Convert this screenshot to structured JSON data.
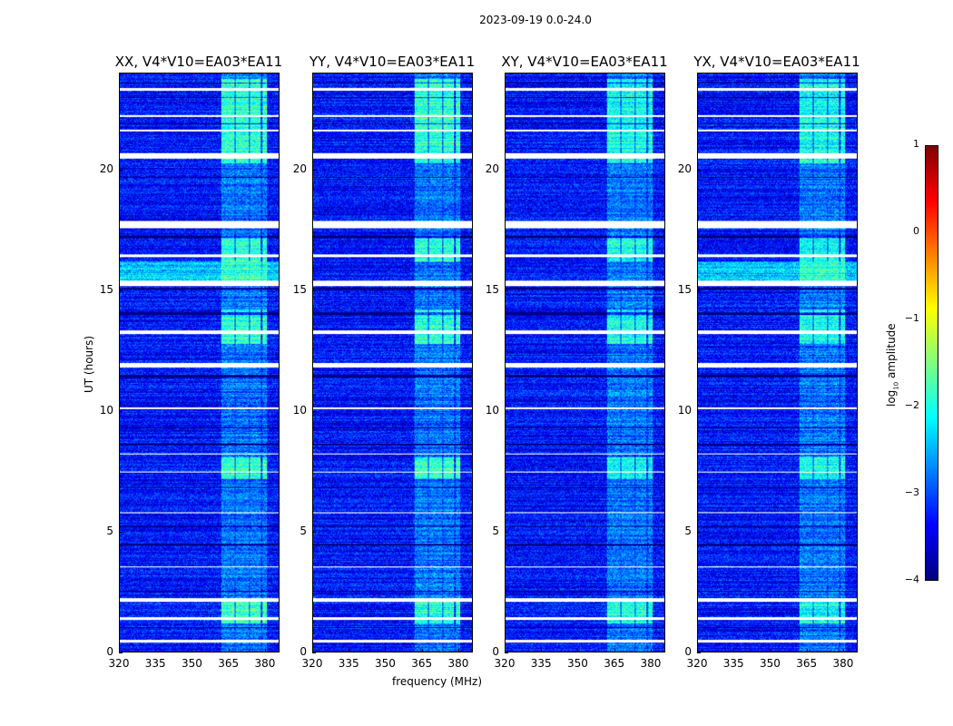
{
  "chart_data": {
    "type": "heatmap",
    "title": "2023-09-19 0.0-24.0",
    "xlabel": "frequency (MHz)",
    "ylabel": "UT (hours)",
    "xlim": [
      320,
      386
    ],
    "ylim": [
      0,
      24
    ],
    "xticks": [
      "320",
      "335",
      "350",
      "365",
      "380"
    ],
    "xtick_values": [
      320,
      335,
      350,
      365,
      380
    ],
    "yticks": [
      "0",
      "5",
      "10",
      "15",
      "20"
    ],
    "ytick_values": [
      0,
      5,
      10,
      15,
      20
    ],
    "panels": [
      {
        "title": "XX, V4*V10=EA03*EA11",
        "rfi_strength": 1.0,
        "broadband_15_16h": true
      },
      {
        "title": "YY, V4*V10=EA03*EA11",
        "rfi_strength": 1.0,
        "broadband_15_16h": false
      },
      {
        "title": "XY, V4*V10=EA03*EA11",
        "rfi_strength": 0.9,
        "broadband_15_16h": false
      },
      {
        "title": "YX, V4*V10=EA03*EA11",
        "rfi_strength": 0.9,
        "broadband_15_16h": true
      }
    ],
    "colorbar": {
      "label": "log10 amplitude",
      "label_base": "log",
      "label_sub": "10",
      "label_rest": " amplitude",
      "range": [
        -4,
        1
      ],
      "ticks": [
        "1",
        "0",
        "−1",
        "−2",
        "−3",
        "−4"
      ],
      "tick_values": [
        1,
        0,
        -1,
        -2,
        -3,
        -4
      ],
      "colormap": "jet"
    },
    "background_log_amplitude": -3.3,
    "rfi_band_mhz": [
      362,
      381
    ],
    "rfi_subbands_mhz": [
      [
        362,
        367.5
      ],
      [
        368,
        373.5
      ],
      [
        374,
        378.5
      ],
      [
        379,
        381
      ]
    ],
    "rfi_strong_hours": [
      [
        1.2,
        2.1
      ],
      [
        7.2,
        8.1
      ],
      [
        12.8,
        14.2
      ],
      [
        16.2,
        17.3
      ],
      [
        20.3,
        23.8
      ]
    ],
    "flagged_hours": [
      [
        0.4,
        0.5
      ],
      [
        1.35,
        1.45
      ],
      [
        2.1,
        2.25
      ],
      [
        3.5,
        3.55
      ],
      [
        5.75,
        5.8
      ],
      [
        7.45,
        7.5
      ],
      [
        8.2,
        8.25
      ],
      [
        10.1,
        10.15
      ],
      [
        11.8,
        12.0
      ],
      [
        13.2,
        13.35
      ],
      [
        15.2,
        15.4
      ],
      [
        16.4,
        16.5
      ],
      [
        17.6,
        17.9
      ],
      [
        20.5,
        20.7
      ],
      [
        21.6,
        21.7
      ],
      [
        22.2,
        22.3
      ],
      [
        23.3,
        23.4
      ]
    ],
    "dark_hours": [
      [
        1.0,
        1.05
      ],
      [
        2.5,
        2.55
      ],
      [
        4.4,
        4.5
      ],
      [
        5.2,
        5.25
      ],
      [
        6.8,
        6.85
      ],
      [
        8.6,
        8.65
      ],
      [
        9.3,
        9.35
      ],
      [
        11.4,
        11.5
      ],
      [
        14.0,
        14.1
      ],
      [
        15.05,
        15.1
      ],
      [
        17.2,
        17.3
      ],
      [
        19.7,
        19.75
      ],
      [
        21.9,
        21.95
      ],
      [
        23.0,
        23.05
      ],
      [
        23.6,
        23.65
      ]
    ]
  }
}
